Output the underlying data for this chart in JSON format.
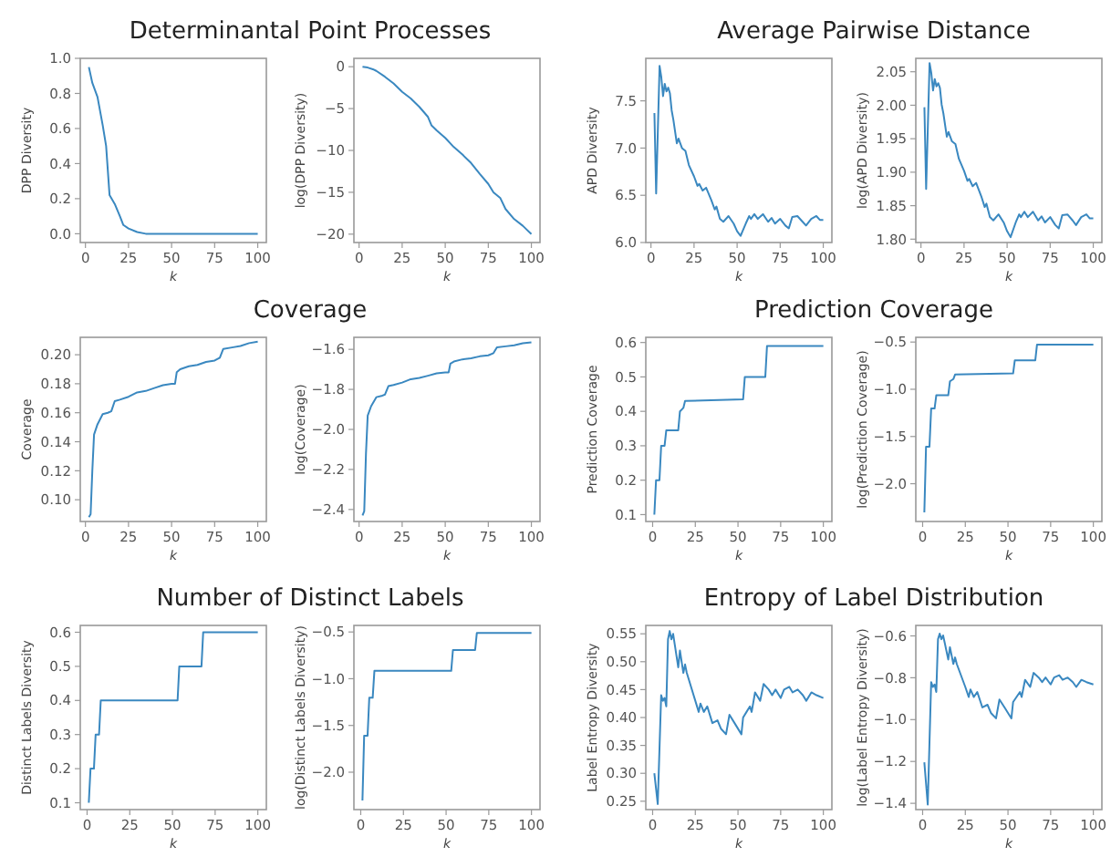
{
  "chart_data": [
    {
      "type": "line",
      "title": "Determinantal Point Processes",
      "xlabel": "k",
      "ylabel": "DPP Diversity",
      "xlim": [
        -3,
        105
      ],
      "xticks": [
        0,
        25,
        50,
        75,
        100
      ],
      "ylim": [
        -0.05,
        1.0
      ],
      "yticks": [
        {
          "value": 0,
          "label": "0.0"
        },
        {
          "value": 0.2,
          "label": "0.2"
        },
        {
          "value": 0.4,
          "label": "0.4"
        },
        {
          "value": 0.6,
          "label": "0.6"
        },
        {
          "value": 0.8,
          "label": "0.8"
        },
        {
          "value": 1,
          "label": "1.0"
        }
      ],
      "grid": false,
      "series": [
        {
          "color": "#3a88c0",
          "x": [
            2,
            4,
            7,
            10,
            12,
            14,
            17,
            20,
            22,
            25,
            30,
            35,
            100
          ],
          "values": [
            0.95,
            0.86,
            0.78,
            0.62,
            0.5,
            0.22,
            0.17,
            0.1,
            0.05,
            0.03,
            0.01,
            0.0,
            0.0
          ]
        }
      ]
    },
    {
      "type": "line",
      "xlabel": "k",
      "ylabel": "log(DPP Diversity)",
      "xlim": [
        -3,
        105
      ],
      "xticks": [
        0,
        25,
        50,
        75,
        100
      ],
      "ylim": [
        -21,
        1
      ],
      "yticks": [
        0,
        {
          "value": -5,
          "label": "−5"
        },
        {
          "value": -10,
          "label": "−10"
        },
        {
          "value": -15,
          "label": "−15"
        },
        {
          "value": -20,
          "label": "−20"
        }
      ],
      "grid": false,
      "series": [
        {
          "color": "#3a88c0",
          "x": [
            2,
            5,
            8,
            10,
            15,
            20,
            25,
            30,
            35,
            40,
            42,
            45,
            50,
            55,
            60,
            65,
            70,
            75,
            78,
            82,
            85,
            90,
            95,
            100
          ],
          "values": [
            0,
            -0.1,
            -0.3,
            -0.5,
            -1.2,
            -2,
            -3,
            -3.8,
            -4.8,
            -6,
            -7,
            -7.6,
            -8.5,
            -9.6,
            -10.5,
            -11.5,
            -12.8,
            -14,
            -15,
            -15.7,
            -17,
            -18.2,
            -19,
            -20
          ]
        }
      ]
    },
    {
      "type": "line",
      "title": "Average Pairwise Distance",
      "xlabel": "k",
      "ylabel": "APD Diversity",
      "xlim": [
        -3,
        105
      ],
      "xticks": [
        0,
        25,
        50,
        75,
        100
      ],
      "ylim": [
        6.0,
        7.95
      ],
      "yticks": [
        {
          "value": 6,
          "label": "6.0"
        },
        6.5,
        {
          "value": 7,
          "label": "7.0"
        },
        7.5
      ],
      "grid": false,
      "series": [
        {
          "color": "#3a88c0",
          "x": [
            2,
            3,
            5,
            6,
            7,
            8,
            9,
            10,
            11,
            12,
            13,
            15,
            16,
            18,
            20,
            22,
            25,
            27,
            28,
            30,
            32,
            35,
            37,
            38,
            40,
            42,
            45,
            48,
            50,
            52,
            55,
            57,
            58,
            60,
            62,
            65,
            68,
            70,
            72,
            75,
            78,
            80,
            82,
            85,
            88,
            90,
            93,
            96,
            98,
            100
          ],
          "values": [
            7.37,
            6.52,
            7.87,
            7.75,
            7.55,
            7.68,
            7.6,
            7.64,
            7.58,
            7.4,
            7.3,
            7.05,
            7.1,
            7.0,
            6.97,
            6.82,
            6.7,
            6.6,
            6.62,
            6.55,
            6.58,
            6.45,
            6.35,
            6.38,
            6.25,
            6.22,
            6.28,
            6.2,
            6.12,
            6.07,
            6.2,
            6.28,
            6.25,
            6.3,
            6.25,
            6.3,
            6.22,
            6.26,
            6.2,
            6.25,
            6.18,
            6.15,
            6.27,
            6.28,
            6.22,
            6.18,
            6.25,
            6.28,
            6.24,
            6.24
          ]
        }
      ]
    },
    {
      "type": "line",
      "xlabel": "k",
      "ylabel": "log(APD Diversity)",
      "xlim": [
        -3,
        105
      ],
      "xticks": [
        0,
        25,
        50,
        75,
        100
      ],
      "ylim": [
        1.795,
        2.07
      ],
      "yticks": [
        {
          "value": 1.8,
          "label": "1.80"
        },
        1.85,
        {
          "value": 1.9,
          "label": "1.90"
        },
        1.95,
        {
          "value": 2,
          "label": "2.00"
        },
        2.05
      ],
      "grid": false,
      "series": [
        {
          "color": "#3a88c0",
          "x": [
            2,
            3,
            5,
            6,
            7,
            8,
            9,
            10,
            11,
            12,
            13,
            15,
            16,
            18,
            20,
            22,
            25,
            27,
            28,
            30,
            32,
            35,
            37,
            38,
            40,
            42,
            45,
            48,
            50,
            52,
            55,
            57,
            58,
            60,
            62,
            65,
            68,
            70,
            72,
            75,
            78,
            80,
            82,
            85,
            88,
            90,
            93,
            96,
            98,
            100
          ],
          "values": [
            1.997,
            1.875,
            2.063,
            2.048,
            2.022,
            2.039,
            2.028,
            2.033,
            2.026,
            2.001,
            1.988,
            1.953,
            1.96,
            1.946,
            1.942,
            1.92,
            1.902,
            1.887,
            1.89,
            1.879,
            1.884,
            1.864,
            1.848,
            1.853,
            1.833,
            1.828,
            1.837,
            1.825,
            1.812,
            1.803,
            1.825,
            1.837,
            1.833,
            1.841,
            1.833,
            1.841,
            1.828,
            1.834,
            1.825,
            1.833,
            1.821,
            1.816,
            1.836,
            1.837,
            1.828,
            1.821,
            1.833,
            1.837,
            1.831,
            1.831
          ]
        }
      ]
    },
    {
      "type": "line",
      "title": "Coverage",
      "xlabel": "k",
      "ylabel": "Coverage",
      "xlim": [
        -3,
        105
      ],
      "xticks": [
        0,
        25,
        50,
        75,
        100
      ],
      "ylim": [
        0.085,
        0.212
      ],
      "yticks": [
        {
          "value": 0.1,
          "label": "0.10"
        },
        0.12,
        0.14,
        0.16,
        0.18,
        {
          "value": 0.2,
          "label": "0.20"
        }
      ],
      "grid": false,
      "series": [
        {
          "color": "#3a88c0",
          "x": [
            2,
            3,
            4,
            5,
            7,
            10,
            13,
            15,
            17,
            20,
            25,
            30,
            35,
            40,
            45,
            50,
            52,
            53,
            55,
            60,
            65,
            70,
            75,
            78,
            80,
            85,
            90,
            95,
            100
          ],
          "values": [
            0.088,
            0.09,
            0.12,
            0.145,
            0.152,
            0.159,
            0.16,
            0.161,
            0.168,
            0.169,
            0.171,
            0.174,
            0.175,
            0.177,
            0.179,
            0.18,
            0.18,
            0.188,
            0.19,
            0.192,
            0.193,
            0.195,
            0.196,
            0.198,
            0.204,
            0.205,
            0.206,
            0.208,
            0.209
          ]
        }
      ]
    },
    {
      "type": "line",
      "xlabel": "k",
      "ylabel": "log(Coverage)",
      "xlim": [
        -3,
        105
      ],
      "xticks": [
        0,
        25,
        50,
        75,
        100
      ],
      "ylim": [
        -2.46,
        -1.54
      ],
      "yticks": [
        {
          "value": -2.4,
          "label": "−2.4"
        },
        {
          "value": -2.2,
          "label": "−2.2"
        },
        {
          "value": -2,
          "label": "−2.0"
        },
        {
          "value": -1.8,
          "label": "−1.8"
        },
        {
          "value": -1.6,
          "label": "−1.6"
        }
      ],
      "grid": false,
      "series": [
        {
          "color": "#3a88c0",
          "x": [
            2,
            3,
            4,
            5,
            7,
            10,
            13,
            15,
            17,
            20,
            25,
            30,
            35,
            40,
            45,
            50,
            52,
            53,
            55,
            60,
            65,
            70,
            75,
            78,
            80,
            85,
            90,
            95,
            100
          ],
          "values": [
            -2.43,
            -2.408,
            -2.12,
            -1.931,
            -1.884,
            -1.839,
            -1.833,
            -1.826,
            -1.784,
            -1.778,
            -1.766,
            -1.749,
            -1.743,
            -1.732,
            -1.72,
            -1.715,
            -1.715,
            -1.671,
            -1.661,
            -1.65,
            -1.645,
            -1.635,
            -1.63,
            -1.619,
            -1.59,
            -1.585,
            -1.58,
            -1.57,
            -1.565
          ]
        }
      ]
    },
    {
      "type": "line",
      "title": "Prediction Coverage",
      "xlabel": "k",
      "ylabel": "Prediction Coverage",
      "xlim": [
        -4,
        105
      ],
      "xticks": [
        0,
        25,
        50,
        75,
        100
      ],
      "ylim": [
        0.08,
        0.615
      ],
      "yticks": [
        0.1,
        0.2,
        0.3,
        0.4,
        0.5,
        0.6
      ],
      "grid": false,
      "series": [
        {
          "color": "#3a88c0",
          "x": [
            1,
            2,
            4,
            5,
            7,
            8,
            15,
            16,
            18,
            19,
            53,
            54,
            66,
            67,
            100
          ],
          "values": [
            0.1,
            0.2,
            0.2,
            0.3,
            0.3,
            0.345,
            0.345,
            0.4,
            0.41,
            0.43,
            0.435,
            0.5,
            0.5,
            0.59,
            0.59
          ]
        }
      ]
    },
    {
      "type": "line",
      "xlabel": "k",
      "ylabel": "log(Prediction Coverage)",
      "xlim": [
        -4,
        105
      ],
      "xticks": [
        0,
        25,
        50,
        75,
        100
      ],
      "ylim": [
        -2.4,
        -0.45
      ],
      "yticks": [
        {
          "value": -2,
          "label": "−2.0"
        },
        {
          "value": -1.5,
          "label": "−1.5"
        },
        {
          "value": -1,
          "label": "−1.0"
        },
        {
          "value": -0.5,
          "label": "−0.5"
        }
      ],
      "grid": false,
      "series": [
        {
          "color": "#3a88c0",
          "x": [
            1,
            2,
            4,
            5,
            7,
            8,
            15,
            16,
            18,
            19,
            53,
            54,
            66,
            67,
            100
          ],
          "values": [
            -2.303,
            -1.609,
            -1.609,
            -1.204,
            -1.204,
            -1.064,
            -1.064,
            -0.916,
            -0.892,
            -0.844,
            -0.832,
            -0.693,
            -0.693,
            -0.528,
            -0.528
          ]
        }
      ]
    },
    {
      "type": "line",
      "title": "Number of Distinct Labels",
      "xlabel": "k",
      "ylabel": "Distinct Labels Diversity",
      "xlim": [
        -4,
        105
      ],
      "xticks": [
        0,
        25,
        50,
        75,
        100
      ],
      "ylim": [
        0.08,
        0.62
      ],
      "yticks": [
        0.1,
        0.2,
        0.3,
        0.4,
        0.5,
        0.6
      ],
      "grid": false,
      "series": [
        {
          "color": "#3a88c0",
          "x": [
            1,
            2,
            4,
            5,
            7,
            8,
            53,
            54,
            67,
            68,
            100
          ],
          "values": [
            0.1,
            0.2,
            0.2,
            0.3,
            0.3,
            0.4,
            0.4,
            0.5,
            0.5,
            0.6,
            0.6
          ]
        }
      ]
    },
    {
      "type": "line",
      "xlabel": "k",
      "ylabel": "log(Distinct Labels Diversity)",
      "xlim": [
        -4,
        105
      ],
      "xticks": [
        0,
        25,
        50,
        75,
        100
      ],
      "ylim": [
        -2.4,
        -0.43
      ],
      "yticks": [
        {
          "value": -2,
          "label": "−2.0"
        },
        {
          "value": -1.5,
          "label": "−1.5"
        },
        {
          "value": -1,
          "label": "−1.0"
        },
        {
          "value": -0.5,
          "label": "−0.5"
        }
      ],
      "grid": false,
      "series": [
        {
          "color": "#3a88c0",
          "x": [
            1,
            2,
            4,
            5,
            7,
            8,
            53,
            54,
            67,
            68,
            100
          ],
          "values": [
            -2.303,
            -1.609,
            -1.609,
            -1.204,
            -1.204,
            -0.916,
            -0.916,
            -0.693,
            -0.693,
            -0.511,
            -0.511
          ]
        }
      ]
    },
    {
      "type": "line",
      "title": "Entropy of Label Distribution",
      "xlabel": "k",
      "ylabel": "Label Entropy Diversity",
      "xlim": [
        -4,
        105
      ],
      "xticks": [
        0,
        25,
        50,
        75,
        100
      ],
      "ylim": [
        0.235,
        0.565
      ],
      "yticks": [
        0.25,
        {
          "value": 0.3,
          "label": "0.30"
        },
        0.35,
        {
          "value": 0.4,
          "label": "0.40"
        },
        0.45,
        {
          "value": 0.5,
          "label": "0.50"
        },
        0.55
      ],
      "grid": false,
      "series": [
        {
          "color": "#3a88c0",
          "x": [
            1,
            3,
            5,
            6,
            7,
            8,
            9,
            10,
            11,
            12,
            13,
            15,
            16,
            18,
            19,
            20,
            25,
            27,
            28,
            30,
            32,
            35,
            38,
            40,
            43,
            45,
            48,
            52,
            53,
            55,
            57,
            58,
            60,
            63,
            65,
            68,
            70,
            72,
            75,
            77,
            80,
            82,
            85,
            88,
            90,
            93,
            96,
            100
          ],
          "values": [
            0.3,
            0.245,
            0.44,
            0.43,
            0.435,
            0.42,
            0.54,
            0.555,
            0.54,
            0.55,
            0.53,
            0.49,
            0.52,
            0.48,
            0.495,
            0.48,
            0.43,
            0.41,
            0.425,
            0.41,
            0.42,
            0.39,
            0.395,
            0.38,
            0.37,
            0.405,
            0.39,
            0.37,
            0.4,
            0.41,
            0.42,
            0.41,
            0.445,
            0.43,
            0.46,
            0.45,
            0.44,
            0.45,
            0.435,
            0.45,
            0.455,
            0.445,
            0.45,
            0.44,
            0.43,
            0.445,
            0.44,
            0.435
          ]
        }
      ]
    },
    {
      "type": "line",
      "xlabel": "k",
      "ylabel": "log(Label Entropy Diversity)",
      "xlim": [
        -4,
        105
      ],
      "xticks": [
        0,
        25,
        50,
        75,
        100
      ],
      "ylim": [
        -1.43,
        -0.55
      ],
      "yticks": [
        {
          "value": -1.4,
          "label": "−1.4"
        },
        {
          "value": -1.2,
          "label": "−1.2"
        },
        {
          "value": -1,
          "label": "−1.0"
        },
        {
          "value": -0.8,
          "label": "−0.8"
        },
        {
          "value": -0.6,
          "label": "−0.6"
        }
      ],
      "grid": false,
      "series": [
        {
          "color": "#3a88c0",
          "x": [
            1,
            3,
            5,
            6,
            7,
            8,
            9,
            10,
            11,
            12,
            13,
            15,
            16,
            18,
            19,
            20,
            25,
            27,
            28,
            30,
            32,
            35,
            38,
            40,
            43,
            45,
            48,
            52,
            53,
            55,
            57,
            58,
            60,
            63,
            65,
            68,
            70,
            72,
            75,
            77,
            80,
            82,
            85,
            88,
            90,
            93,
            96,
            100
          ],
          "values": [
            -1.204,
            -1.406,
            -0.821,
            -0.844,
            -0.832,
            -0.868,
            -0.616,
            -0.589,
            -0.616,
            -0.598,
            -0.635,
            -0.713,
            -0.654,
            -0.734,
            -0.703,
            -0.734,
            -0.844,
            -0.892,
            -0.856,
            -0.892,
            -0.868,
            -0.942,
            -0.929,
            -0.968,
            -0.994,
            -0.904,
            -0.942,
            -0.994,
            -0.916,
            -0.892,
            -0.868,
            -0.892,
            -0.81,
            -0.844,
            -0.777,
            -0.799,
            -0.821,
            -0.799,
            -0.832,
            -0.799,
            -0.788,
            -0.81,
            -0.799,
            -0.821,
            -0.844,
            -0.81,
            -0.821,
            -0.832
          ]
        }
      ]
    }
  ]
}
